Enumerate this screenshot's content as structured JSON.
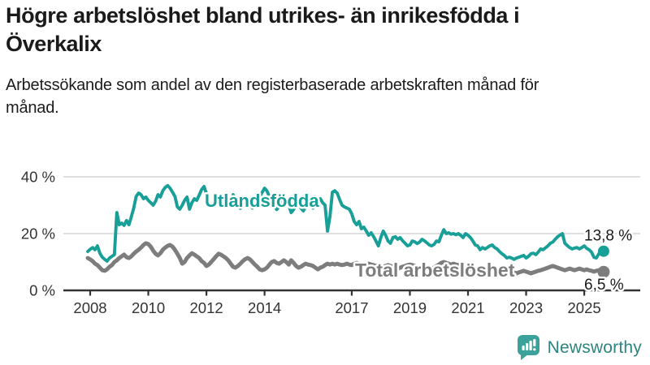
{
  "header": {
    "title": "Högre arbetslöshet bland utrikes- än inrikesfödda i Överkalix",
    "subtitle": "Arbetssökande som andel av den registerbaserade arbetskraften månad för månad."
  },
  "footer": {
    "brand": "Newsworthy"
  },
  "colors": {
    "foreign_born_line": "#189f97",
    "total_line": "#7d7d7d",
    "axis": "#333333",
    "grid": "#cccccc",
    "annotation_text": "#1a1a1a",
    "logo_icon": "#3aa29b",
    "logo_text": "#2d837e"
  },
  "chart_data": {
    "type": "line",
    "title": "Högre arbetslöshet bland utrikes- än inrikesfödda i Överkalix",
    "subtitle": "Arbetssökande som andel av den registerbaserade arbetskraften månad för månad.",
    "grid": "horizontal",
    "x_start_year": 2008,
    "points_per_year": 12,
    "x_tick_years": [
      2008,
      2010,
      2012,
      2014,
      2017,
      2019,
      2021,
      2023,
      2025
    ],
    "x_tick_labels": [
      "2008",
      "2010",
      "2012",
      "2014",
      "2017",
      "2019",
      "2021",
      "2023",
      "2025"
    ],
    "y_ticks": [
      {
        "value": 0,
        "label": "0 %"
      },
      {
        "value": 20,
        "label": "20 %"
      },
      {
        "value": 40,
        "label": "40 %"
      }
    ],
    "ylim": [
      0,
      42
    ],
    "series": [
      {
        "name": "Utlandsfödda",
        "color": "#189f97",
        "end_value": 13.8,
        "end_label": "13,8 %",
        "values": [
          13.7,
          14.5,
          15.1,
          14.3,
          15.7,
          13.1,
          11.7,
          10.9,
          10.3,
          11.4,
          12.0,
          12.6,
          27.4,
          23.1,
          23.7,
          22.9,
          24.6,
          23.1,
          26.0,
          29.0,
          33.1,
          34.3,
          33.7,
          32.3,
          32.9,
          31.7,
          30.9,
          30.0,
          31.4,
          33.7,
          32.9,
          35.1,
          36.3,
          36.9,
          36.0,
          34.6,
          33.1,
          29.4,
          28.6,
          30.0,
          31.7,
          32.9,
          28.6,
          30.9,
          32.3,
          31.7,
          33.5,
          35.5,
          36.6,
          34.0,
          31.0,
          29.4,
          30.5,
          32.3,
          30.0,
          31.0,
          33.0,
          33.7,
          32.0,
          30.5,
          33.7,
          32.5,
          31.0,
          28.9,
          29.5,
          31.0,
          32.0,
          30.5,
          29.0,
          30.0,
          31.5,
          33.0,
          34.5,
          36.0,
          35.0,
          33.0,
          31.5,
          30.0,
          28.5,
          29.5,
          31.0,
          32.5,
          31.5,
          30.0,
          27.4,
          28.5,
          30.0,
          30.3,
          29.0,
          28.0,
          29.5,
          31.0,
          30.0,
          29.0,
          30.5,
          31.7,
          32.3,
          30.9,
          30.0,
          20.9,
          26.0,
          34.6,
          35.1,
          34.3,
          32.0,
          30.0,
          29.4,
          29.0,
          28.6,
          27.0,
          24.3,
          23.1,
          24.3,
          21.7,
          22.3,
          20.9,
          19.4,
          20.3,
          19.0,
          17.4,
          15.7,
          18.6,
          20.9,
          19.4,
          17.4,
          16.6,
          18.6,
          18.9,
          18.0,
          18.6,
          17.5,
          16.6,
          15.7,
          16.0,
          17.4,
          17.1,
          16.5,
          17.0,
          18.0,
          17.5,
          16.8,
          16.0,
          15.7,
          16.2,
          17.4,
          17.1,
          19.4,
          21.4,
          20.0,
          20.3,
          19.8,
          20.0,
          19.6,
          20.0,
          19.4,
          18.6,
          20.0,
          19.4,
          18.6,
          17.4,
          16.0,
          15.7,
          14.3,
          15.1,
          14.6,
          15.1,
          15.7,
          16.0,
          15.1,
          14.6,
          13.7,
          12.9,
          12.3,
          11.4,
          11.7,
          11.4,
          10.9,
          11.4,
          11.7,
          12.0,
          12.3,
          11.4,
          12.0,
          12.9,
          13.1,
          12.6,
          13.5,
          14.6,
          14.3,
          15.0,
          15.7,
          16.6,
          17.0,
          18.0,
          18.9,
          19.5,
          20.0,
          16.6,
          15.8,
          15.1,
          14.6,
          14.9,
          15.1,
          14.6,
          15.1,
          15.7,
          14.8,
          14.3,
          13.5,
          11.7,
          11.4,
          12.9,
          13.4,
          13.8
        ]
      },
      {
        "name": "Total arbetslöshet",
        "color": "#7d7d7d",
        "end_value": 6.5,
        "end_label": "6,5 %",
        "values": [
          11.4,
          10.9,
          10.3,
          9.4,
          8.9,
          8.0,
          7.1,
          6.9,
          7.4,
          8.3,
          8.9,
          10.0,
          10.6,
          11.4,
          12.0,
          12.6,
          11.7,
          11.4,
          12.0,
          12.9,
          13.7,
          14.3,
          15.1,
          16.0,
          16.6,
          16.3,
          15.4,
          14.0,
          12.9,
          12.3,
          13.1,
          14.3,
          15.1,
          15.7,
          16.0,
          15.4,
          14.3,
          12.9,
          11.4,
          9.4,
          10.0,
          11.4,
          12.3,
          13.1,
          12.6,
          12.0,
          11.4,
          10.3,
          9.7,
          8.6,
          9.1,
          10.0,
          11.0,
          12.0,
          12.9,
          12.6,
          12.0,
          11.4,
          10.6,
          9.4,
          8.3,
          8.0,
          8.6,
          9.4,
          10.3,
          11.0,
          11.4,
          10.9,
          10.0,
          9.1,
          8.3,
          7.4,
          7.1,
          7.4,
          8.0,
          9.1,
          10.0,
          10.3,
          9.7,
          9.4,
          10.0,
          10.6,
          10.0,
          9.1,
          10.6,
          9.7,
          8.6,
          8.0,
          8.3,
          8.9,
          9.4,
          9.1,
          8.9,
          8.6,
          8.0,
          7.4,
          8.0,
          8.3,
          8.9,
          9.4,
          9.1,
          9.4,
          9.1,
          9.4,
          9.1,
          8.9,
          9.1,
          9.4,
          9.1,
          8.9,
          9.4,
          9.7,
          9.4,
          9.1,
          8.9,
          9.1,
          9.4,
          9.1,
          8.9,
          8.6,
          8.3,
          8.0,
          8.3,
          8.6,
          8.9,
          8.6,
          8.3,
          8.0,
          7.7,
          8.0,
          8.3,
          8.6,
          8.9,
          9.1,
          8.9,
          8.6,
          8.3,
          8.0,
          8.3,
          8.6,
          8.3,
          8.0,
          7.7,
          8.0,
          8.6,
          9.1,
          9.7,
          10.0,
          9.7,
          9.4,
          9.1,
          9.4,
          9.1,
          8.9,
          8.6,
          8.3,
          8.0,
          7.7,
          7.4,
          7.1,
          6.9,
          6.6,
          6.3,
          6.6,
          6.3,
          6.0,
          6.3,
          6.0,
          6.3,
          6.0,
          5.7,
          5.5,
          5.7,
          6.0,
          5.7,
          6.0,
          6.3,
          6.0,
          6.3,
          6.6,
          6.9,
          6.6,
          6.3,
          6.0,
          6.3,
          6.6,
          6.9,
          7.1,
          7.4,
          7.7,
          8.0,
          8.3,
          8.6,
          8.3,
          8.0,
          7.7,
          7.4,
          7.1,
          7.4,
          7.7,
          7.4,
          7.1,
          7.4,
          7.7,
          7.4,
          7.1,
          7.4,
          7.1,
          6.9,
          6.6,
          6.9,
          7.1,
          6.9,
          6.5
        ]
      }
    ]
  }
}
